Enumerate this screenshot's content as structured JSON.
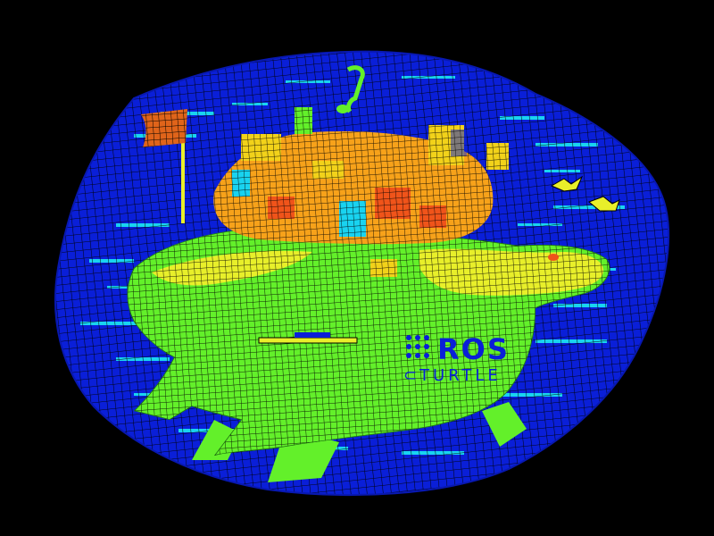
{
  "scene": {
    "description_hidden": "",
    "palette": {
      "background": "#000000",
      "water": "#0a1fd8",
      "water_highlight": "#19d3f0",
      "shell_green": "#63f02a",
      "shell_yellow": "#e8ef2a",
      "building_orange": "#f7a21a",
      "building_red": "#f0541a",
      "building_yellow": "#f2d21a",
      "mesh_line": "#000000",
      "flag_red": "#e0641a"
    }
  },
  "logo": {
    "word": "ROS",
    "subword": "TURTLE",
    "subword_prefix_glyph": "⊂"
  },
  "icons": {
    "logo_mark": "ros-dots-icon",
    "flag": "flag-icon",
    "bird_1": "bird-icon",
    "bird_2": "bird-icon",
    "music_note": "music-note-icon"
  }
}
